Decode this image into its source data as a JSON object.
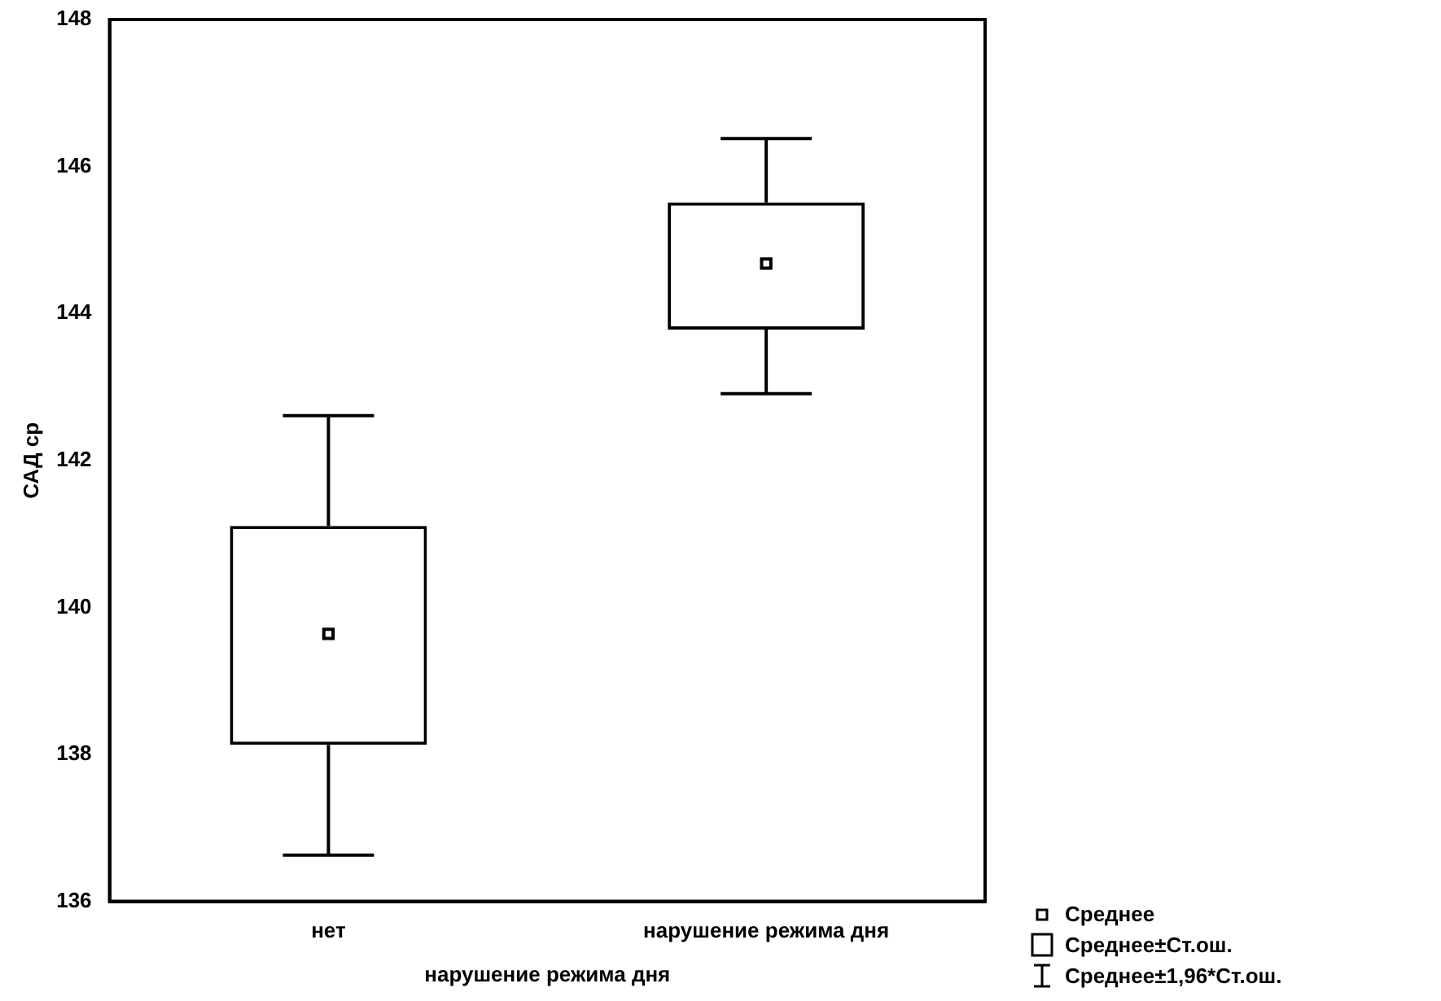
{
  "chart_data": {
    "type": "box",
    "xlabel": "нарушение режима дня",
    "ylabel": "САД ср",
    "categories": [
      "нет",
      "нарушение режима дня"
    ],
    "boxes": [
      {
        "low": 136.63,
        "q1": 138.13,
        "mean": 139.64,
        "q3": 141.11,
        "high": 142.61
      },
      {
        "low": 142.91,
        "q1": 143.78,
        "mean": 144.68,
        "q3": 145.51,
        "high": 146.38
      }
    ],
    "color": "#000000",
    "ylim": [
      136,
      148
    ],
    "yticks": [
      136,
      138,
      140,
      142,
      144,
      146,
      148
    ],
    "annotations": [
      "Среднее",
      "Среднее±Ст.ош.",
      "Среднее±1,96*Ст.ош."
    ]
  }
}
